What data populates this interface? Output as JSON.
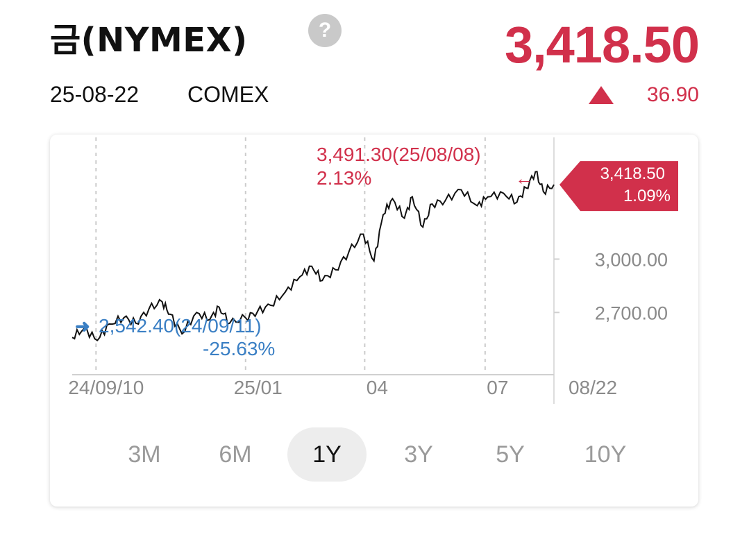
{
  "header": {
    "title": "금(NYMEX)",
    "help_icon_text": "?",
    "price": "3,418.50",
    "date": "25-08-22",
    "exchange": "COMEX",
    "change": "36.90",
    "change_direction": "up-triangle-icon"
  },
  "colors": {
    "up": "#d1304b",
    "down": "#3a7fc4",
    "line": "#111111",
    "grid": "#cccccc"
  },
  "chart_data": {
    "type": "line",
    "ylim": [
      2350,
      3700
    ],
    "y_ticks": [
      {
        "value": 3000,
        "label": "3,000.00"
      },
      {
        "value": 2700,
        "label": "2,700.00"
      }
    ],
    "x_ticks": [
      "24/09/10",
      "25/01",
      "04",
      "07",
      "08/22"
    ],
    "x_tick_dates": [
      "2024-09-10",
      "2025-01-01",
      "2025-04-01",
      "2025-07-01",
      "2025-08-22"
    ],
    "x_range": [
      "2024-08-23",
      "2025-08-22"
    ],
    "series": [
      {
        "x": [
          "2024-08-23",
          "2024-09-01",
          "2024-09-11",
          "2024-09-20",
          "2024-10-01",
          "2024-10-10",
          "2024-10-20",
          "2024-10-30",
          "2024-11-05",
          "2024-11-14",
          "2024-11-25",
          "2024-12-05",
          "2024-12-12",
          "2024-12-20",
          "2025-01-01",
          "2025-01-10",
          "2025-01-20",
          "2025-01-31",
          "2025-02-11",
          "2025-02-20",
          "2025-02-28",
          "2025-03-10",
          "2025-03-20",
          "2025-03-31",
          "2025-04-08",
          "2025-04-15",
          "2025-04-22",
          "2025-05-01",
          "2025-05-07",
          "2025-05-15",
          "2025-05-22",
          "2025-06-01",
          "2025-06-13",
          "2025-06-25",
          "2025-07-03",
          "2025-07-15",
          "2025-07-25",
          "2025-08-01",
          "2025-08-08",
          "2025-08-14",
          "2025-08-22"
        ],
        "values": [
          2560,
          2610,
          2542.4,
          2635,
          2670,
          2640,
          2720,
          2760,
          2690,
          2580,
          2700,
          2660,
          2730,
          2640,
          2670,
          2705,
          2740,
          2815,
          2900,
          2960,
          2880,
          2940,
          3040,
          3140,
          2990,
          3250,
          3340,
          3230,
          3350,
          3180,
          3310,
          3330,
          3390,
          3300,
          3350,
          3370,
          3320,
          3400,
          3491.3,
          3380,
          3418.5
        ]
      }
    ],
    "annotations": {
      "high": {
        "label": "3,491.30(25/08/08)",
        "pct": "2.13%"
      },
      "low": {
        "label": "2,542.40(24/09/11)",
        "pct": "-25.63%"
      },
      "current": {
        "label": "3,418.50",
        "pct": "1.09%"
      }
    }
  },
  "periods": {
    "items": [
      "3M",
      "6M",
      "1Y",
      "3Y",
      "5Y",
      "10Y"
    ],
    "selected": "1Y"
  }
}
